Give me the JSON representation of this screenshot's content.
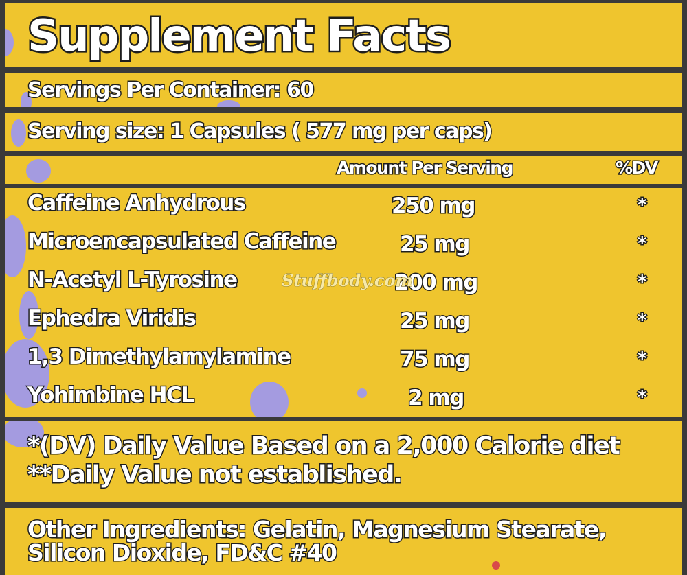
{
  "label": {
    "title": "Supplement Facts",
    "servings_per_container": "Servings Per Container: 60",
    "serving_size": "Serving size: 1 Capsules ( 577 mg per caps)",
    "header": {
      "amount": "Amount Per Serving",
      "dv": "%DV"
    },
    "ingredients": [
      {
        "name": "Caffeine Anhydrous",
        "amount": "250 mg",
        "dv": "*"
      },
      {
        "name": "Microencapsulated Caffeine",
        "amount": "25 mg",
        "dv": "*"
      },
      {
        "name": "N-Acetyl L-Tyrosine",
        "amount": "200 mg",
        "dv": "*"
      },
      {
        "name": "Ephedra Viridis",
        "amount": "25 mg",
        "dv": "*"
      },
      {
        "name": "1,3 Dimethylamylamine",
        "amount": "75 mg",
        "dv": "*"
      },
      {
        "name": "Yohimbine HCL",
        "amount": "2 mg",
        "dv": "*"
      }
    ],
    "footnote_1": "*(DV) Daily Value Based on a 2,000 Calorie diet",
    "footnote_2": "**Daily Value not established.",
    "other_ingredients_line1": "Other  Ingredients:   Gelatin, Magnesium  Stearate,",
    "other_ingredients_line2": "Silicon Dioxide, FD&C #40"
  },
  "watermark": "Stuffbody.com",
  "colors": {
    "panel": "#efc52e",
    "frame": "#3a3a3a",
    "text": "#ffffff",
    "outline": "#1e1e1e",
    "splatter": "#a49be0"
  }
}
